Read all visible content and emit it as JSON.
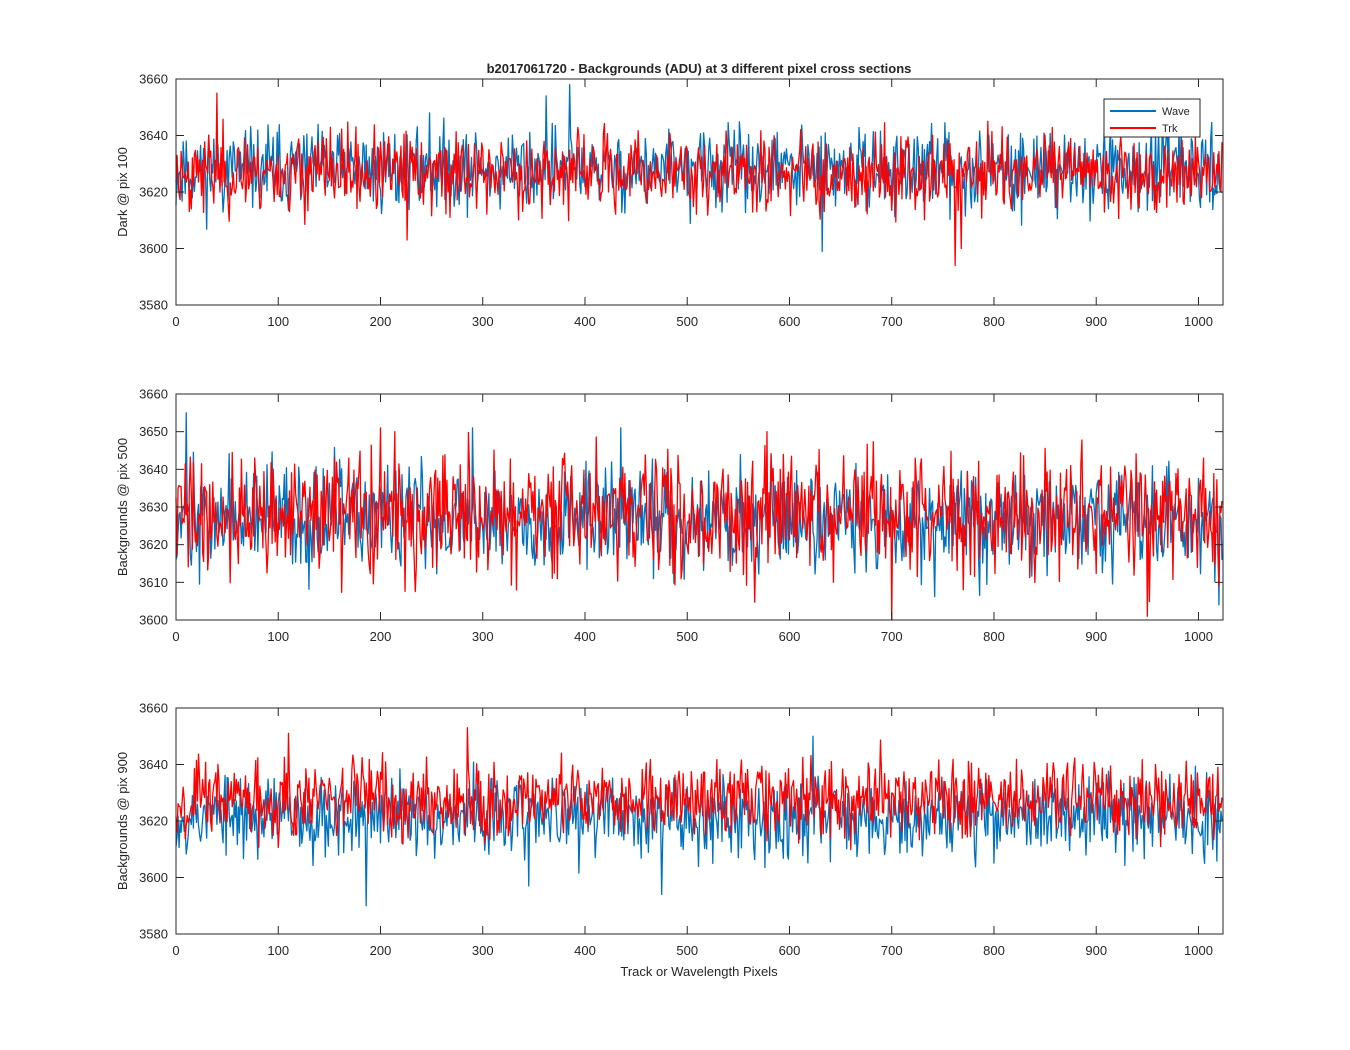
{
  "figure": {
    "title": "b2017061720 - Backgrounds (ADU) at 3 different pixel cross sections",
    "xlabel": "Track or Wavelength Pixels"
  },
  "legend": {
    "entries": [
      {
        "label": "Wave",
        "color": "#0072BD"
      },
      {
        "label": "Trk",
        "color": "#FF0000"
      }
    ],
    "location": "top-right of first panel"
  },
  "chart_data": [
    {
      "type": "line",
      "title": "b2017061720 - Backgrounds (ADU) at 3 different pixel cross sections",
      "ylabel": "Dark @ pix 100",
      "xlabel": "",
      "xlim": [
        0,
        1024
      ],
      "ylim": [
        3580,
        3660
      ],
      "xticks": [
        0,
        100,
        200,
        300,
        400,
        500,
        600,
        700,
        800,
        900,
        1000
      ],
      "yticks": [
        3580,
        3600,
        3620,
        3640,
        3660
      ],
      "n_points": 1024,
      "series": [
        {
          "name": "Wave",
          "color": "#0072BD",
          "mean": 3628,
          "spread": 7,
          "min": 3599,
          "max": 3658,
          "seed": 11,
          "spikes": [
            [
              362,
              3654
            ],
            [
              385,
              3658
            ],
            [
              632,
              3599
            ],
            [
              248,
              3648
            ],
            [
              965,
              3651
            ]
          ]
        },
        {
          "name": "Trk",
          "color": "#FF0000",
          "mean": 3627,
          "spread": 7,
          "min": 3594,
          "max": 3655,
          "seed": 23,
          "spikes": [
            [
              40,
              3655
            ],
            [
              226,
              3603
            ],
            [
              762,
              3594
            ],
            [
              768,
              3600
            ]
          ]
        }
      ]
    },
    {
      "type": "line",
      "title": "",
      "ylabel": "Backgrounds @ pix 500",
      "xlabel": "",
      "xlim": [
        0,
        1024
      ],
      "ylim": [
        3600,
        3660
      ],
      "xticks": [
        0,
        100,
        200,
        300,
        400,
        500,
        600,
        700,
        800,
        900,
        1000
      ],
      "yticks": [
        3600,
        3610,
        3620,
        3630,
        3640,
        3650,
        3660
      ],
      "n_points": 1024,
      "series": [
        {
          "name": "Wave",
          "color": "#0072BD",
          "mean": 3627,
          "spread": 7,
          "min": 3603,
          "max": 3655,
          "seed": 37,
          "spikes": [
            [
              10,
              3655
            ],
            [
              290,
              3651
            ],
            [
              435,
              3651
            ],
            [
              1020,
              3604
            ]
          ]
        },
        {
          "name": "Trk",
          "color": "#FF0000",
          "mean": 3628,
          "spread": 8,
          "min": 3600,
          "max": 3651,
          "seed": 41,
          "spikes": [
            [
              200,
              3651
            ],
            [
              700,
              3600
            ],
            [
              950,
              3601
            ],
            [
              578,
              3650
            ]
          ]
        }
      ]
    },
    {
      "type": "line",
      "title": "",
      "ylabel": "Backgrounds @ pix 900",
      "xlabel": "Track or Wavelength Pixels",
      "xlim": [
        0,
        1024
      ],
      "ylim": [
        3580,
        3660
      ],
      "xticks": [
        0,
        100,
        200,
        300,
        400,
        500,
        600,
        700,
        800,
        900,
        1000
      ],
      "yticks": [
        3580,
        3600,
        3620,
        3640,
        3660
      ],
      "n_points": 1024,
      "series": [
        {
          "name": "Wave",
          "color": "#0072BD",
          "mean": 3622,
          "spread": 7,
          "min": 3590,
          "max": 3650,
          "seed": 53,
          "spikes": [
            [
              186,
              3590
            ],
            [
              475,
              3594
            ],
            [
              345,
              3597
            ],
            [
              623,
              3650
            ]
          ]
        },
        {
          "name": "Trk",
          "color": "#FF0000",
          "mean": 3628,
          "spread": 7,
          "min": 3605,
          "max": 3653,
          "seed": 67,
          "spikes": [
            [
              285,
              3653
            ],
            [
              110,
              3651
            ]
          ]
        }
      ]
    }
  ]
}
